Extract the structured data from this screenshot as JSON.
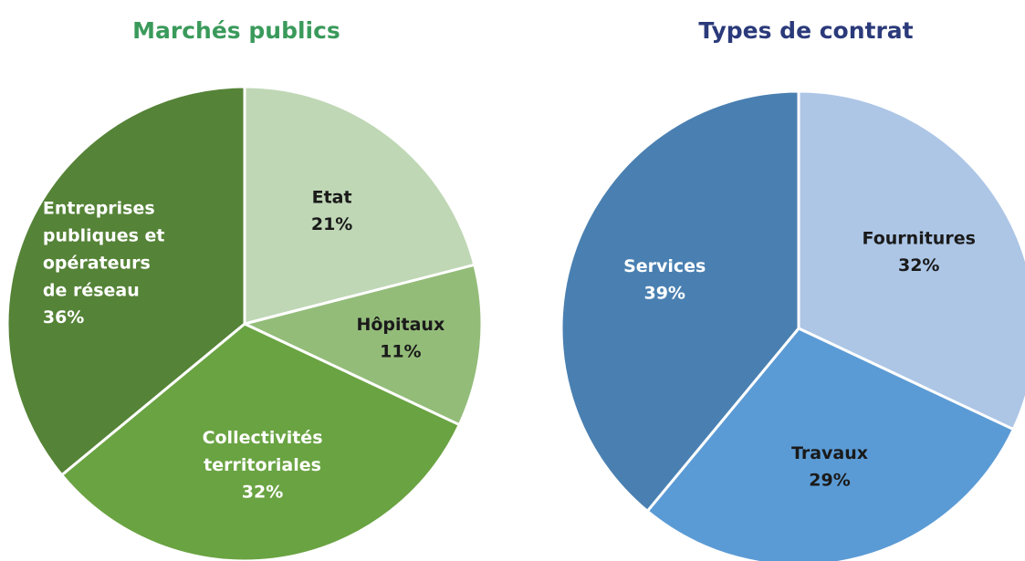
{
  "chart_data": [
    {
      "type": "pie",
      "title": "Marchés publics",
      "categories": [
        "Etat",
        "Hôpitaux",
        "Collectivités\nterritoriales",
        "Entreprises\npubliques et\nopérateurs\nde réseau"
      ],
      "values": [
        21,
        11,
        32,
        36
      ],
      "value_labels": [
        "21%",
        "11%",
        "32%",
        "36%"
      ],
      "colors": [
        "#bfd7b5",
        "#93bc79",
        "#6aa342",
        "#558337"
      ],
      "label_colors": [
        "#1a1a1a",
        "#1a1a1a",
        "#ffffff",
        "#ffffff"
      ],
      "title_color": "#3a9a5b"
    },
    {
      "type": "pie",
      "title": "Types de contrat",
      "categories": [
        "Fournitures",
        "Travaux",
        "Services"
      ],
      "values": [
        32,
        29,
        39
      ],
      "value_labels": [
        "32%",
        "29%",
        "39%"
      ],
      "colors": [
        "#adc6e6",
        "#5b9bd5",
        "#4a80b1"
      ],
      "label_colors": [
        "#1a1a1a",
        "#1a1a1a",
        "#ffffff"
      ],
      "title_color": "#2b3a7a"
    }
  ]
}
